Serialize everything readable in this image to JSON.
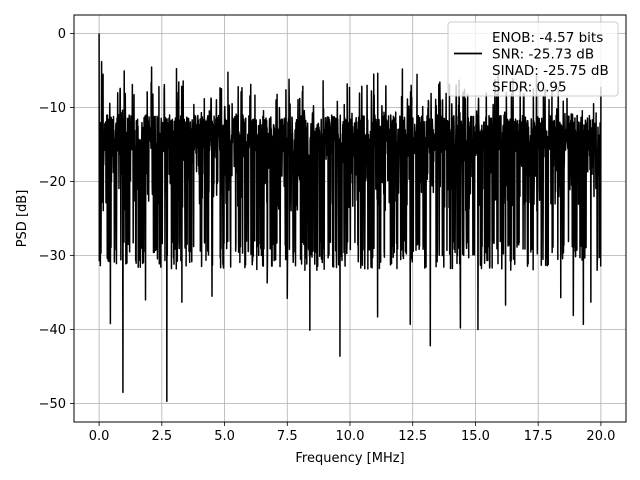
{
  "chart_data": {
    "type": "line",
    "xlabel": "Frequency [MHz]",
    "ylabel": "PSD [dB]",
    "xlim": [
      -1.0,
      21.0
    ],
    "ylim": [
      -52.5,
      2.5
    ],
    "xticks": [
      0.0,
      2.5,
      5.0,
      7.5,
      10.0,
      12.5,
      15.0,
      17.5,
      20.0
    ],
    "xtick_labels": [
      "0.0",
      "2.5",
      "5.0",
      "7.5",
      "10.0",
      "12.5",
      "15.0",
      "17.5",
      "20.0"
    ],
    "yticks": [
      0,
      -10,
      -20,
      -30,
      -40,
      -50
    ],
    "ytick_labels": [
      "0",
      "−10",
      "−20",
      "−30",
      "−40",
      "−50"
    ],
    "grid": true,
    "legend_position": "top-right",
    "legend_entries": [
      "ENOB: -4.57 bits",
      "SNR: -25.73 dB",
      "SINAD: -25.75 dB",
      "SFDR: 0.95"
    ],
    "series": [
      {
        "color": "#000000",
        "x_range": [
          0.0,
          20.0
        ],
        "noise_floor_band": [
          -28,
          -9
        ],
        "peaks": [
          {
            "x": 0.0,
            "y": 0.0
          },
          {
            "x": 0.1,
            "y": -3.8
          }
        ],
        "dips": [
          {
            "x": 0.45,
            "y": -39.2
          },
          {
            "x": 0.95,
            "y": -48.5
          },
          {
            "x": 1.85,
            "y": -36.0
          },
          {
            "x": 2.7,
            "y": -49.7
          },
          {
            "x": 3.3,
            "y": -36.3
          },
          {
            "x": 4.5,
            "y": -35.5
          },
          {
            "x": 6.7,
            "y": -33.7
          },
          {
            "x": 7.5,
            "y": -35.8
          },
          {
            "x": 8.4,
            "y": -40.1
          },
          {
            "x": 9.6,
            "y": -43.6
          },
          {
            "x": 11.1,
            "y": -38.3
          },
          {
            "x": 12.4,
            "y": -39.3
          },
          {
            "x": 13.2,
            "y": -42.2
          },
          {
            "x": 14.4,
            "y": -39.8
          },
          {
            "x": 15.1,
            "y": -40.0
          },
          {
            "x": 16.2,
            "y": -36.7
          },
          {
            "x": 18.4,
            "y": -35.7
          },
          {
            "x": 18.9,
            "y": -38.1
          },
          {
            "x": 19.3,
            "y": -39.3
          },
          {
            "x": 19.6,
            "y": -36.3
          }
        ]
      }
    ]
  }
}
